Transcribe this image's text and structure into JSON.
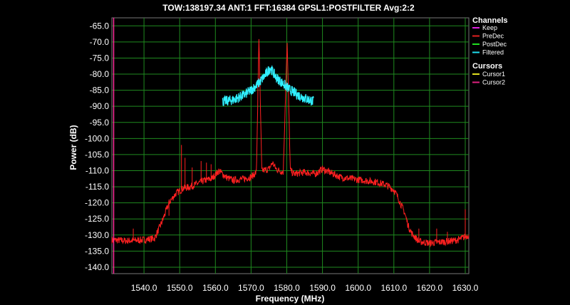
{
  "title": "TOW:138197.34  ANT:1  FFT:16384  GPSL1:POSTFILTER  Avg:2:2",
  "legend": {
    "channels_heading": "Channels",
    "channels": [
      {
        "label": "Keep",
        "color": "#e020e0"
      },
      {
        "label": "PreDec",
        "color": "#e02020"
      },
      {
        "label": "PostDec",
        "color": "#20e020"
      },
      {
        "label": "Filtered",
        "color": "#20e0f0"
      }
    ],
    "cursors_heading": "Cursors",
    "cursors": [
      {
        "label": "Cursor1",
        "color": "#e0e020"
      },
      {
        "label": "Cursor2",
        "color": "#e02080"
      }
    ]
  },
  "chart_data": {
    "type": "line",
    "title": "TOW:138197.34  ANT:1  FFT:16384  GPSL1:POSTFILTER  Avg:2:2",
    "xlabel": "Frequency (MHz)",
    "ylabel": "Power (dB)",
    "xlim": [
      1531.0,
      1631.0
    ],
    "ylim": [
      -142.0,
      -62.5
    ],
    "x_ticks": [
      1540,
      1550,
      1560,
      1570,
      1580,
      1590,
      1600,
      1610,
      1620,
      1630
    ],
    "x_tick_labels": [
      "1540.0",
      "1550.0",
      "1560.0",
      "1570.0",
      "1580.0",
      "1590.0",
      "1600.0",
      "1610.0",
      "1620.0",
      "1630.0"
    ],
    "y_ticks": [
      -65,
      -70,
      -75,
      -80,
      -85,
      -90,
      -95,
      -100,
      -105,
      -110,
      -115,
      -120,
      -125,
      -130,
      -135,
      -140
    ],
    "y_tick_labels": [
      "-65.0",
      "-70.0",
      "-75.0",
      "-80.0",
      "-85.0",
      "-90.0",
      "-95.0",
      "-100.0",
      "-105.0",
      "-110.0",
      "-115.0",
      "-120.0",
      "-125.0",
      "-130.0",
      "-135.0",
      "-140.0"
    ],
    "grid": true,
    "legend_position": "right",
    "series": [
      {
        "name": "PreDec",
        "color": "#ff2020",
        "x": [
          1531,
          1535,
          1540,
          1543,
          1545,
          1547,
          1549,
          1551,
          1553,
          1555,
          1557,
          1559,
          1561,
          1563,
          1565,
          1568,
          1570,
          1571.5,
          1572.2,
          1573,
          1575,
          1576,
          1577,
          1578,
          1579,
          1580.1,
          1581,
          1582,
          1585,
          1588,
          1590,
          1592,
          1595,
          1600,
          1605,
          1608,
          1610,
          1611,
          1613,
          1614,
          1615,
          1617,
          1620,
          1625,
          1628,
          1631
        ],
        "y": [
          -131.5,
          -131.8,
          -131.5,
          -131,
          -126,
          -120,
          -117,
          -115.5,
          -115,
          -114,
          -113,
          -112.5,
          -110,
          -112,
          -113,
          -112.5,
          -112,
          -110.5,
          -69,
          -110,
          -109.5,
          -107.5,
          -109.5,
          -110,
          -110.5,
          -70,
          -110,
          -111,
          -110.5,
          -111,
          -109.5,
          -110.5,
          -112,
          -112.8,
          -113.5,
          -114.5,
          -116,
          -118,
          -123,
          -127,
          -129.5,
          -132,
          -132.5,
          -132,
          -131.5,
          -130
        ]
      },
      {
        "name": "Filtered",
        "color": "#30f0ff",
        "x": [
          1562,
          1565,
          1568,
          1570,
          1572,
          1573.5,
          1575.4,
          1577,
          1579,
          1581,
          1584,
          1587.5
        ],
        "y": [
          -88.5,
          -88,
          -86.5,
          -85,
          -83,
          -81,
          -78,
          -81,
          -83,
          -85,
          -87,
          -88.5
        ]
      }
    ],
    "cursors": [
      {
        "name": "Cursor2",
        "x": 1531.5,
        "color": "#ff2a9a"
      }
    ]
  }
}
